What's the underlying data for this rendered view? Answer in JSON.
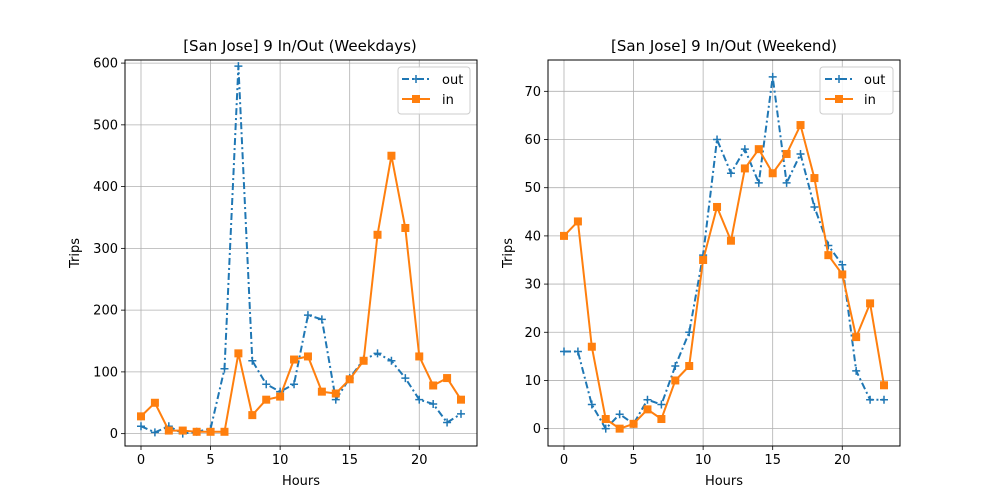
{
  "chart_data": [
    {
      "type": "line",
      "title": "[San Jose] 9 In/Out (Weekdays)",
      "xlabel": "Hours",
      "ylabel": "Trips",
      "xlim": [
        -1.15,
        24.15
      ],
      "ylim": [
        -20,
        605
      ],
      "xticks": [
        "0",
        "5",
        "10",
        "15",
        "20"
      ],
      "yticks": [
        "0",
        "100",
        "200",
        "300",
        "400",
        "500",
        "600"
      ],
      "grid": true,
      "legend_position": "top-right",
      "x": [
        0,
        1,
        2,
        3,
        4,
        5,
        6,
        7,
        8,
        9,
        10,
        11,
        12,
        13,
        14,
        15,
        16,
        17,
        18,
        19,
        20,
        21,
        22,
        23
      ],
      "series": [
        {
          "name": "out",
          "color": "#1f77b4",
          "style": "dash-dot",
          "marker": "plus",
          "values": [
            12,
            2,
            12,
            0,
            3,
            8,
            105,
            595,
            118,
            80,
            68,
            80,
            192,
            185,
            55,
            90,
            120,
            130,
            118,
            90,
            55,
            48,
            18,
            32
          ]
        },
        {
          "name": "in",
          "color": "#ff7f0e",
          "style": "solid",
          "marker": "square",
          "values": [
            28,
            50,
            5,
            5,
            3,
            3,
            3,
            130,
            30,
            55,
            60,
            120,
            125,
            68,
            65,
            88,
            118,
            322,
            450,
            333,
            125,
            78,
            90,
            55
          ]
        }
      ]
    },
    {
      "type": "line",
      "title": "[San Jose] 9 In/Out (Weekend)",
      "xlabel": "Hours",
      "ylabel": "Trips",
      "xlim": [
        -1.15,
        24.15
      ],
      "ylim": [
        -3.6,
        76.5
      ],
      "xticks": [
        "0",
        "5",
        "10",
        "15",
        "20"
      ],
      "yticks": [
        "0",
        "10",
        "20",
        "30",
        "40",
        "50",
        "60",
        "70"
      ],
      "grid": true,
      "legend_position": "top-right",
      "x": [
        0,
        1,
        2,
        3,
        4,
        5,
        6,
        7,
        8,
        9,
        10,
        11,
        12,
        13,
        14,
        15,
        16,
        17,
        18,
        19,
        20,
        21,
        22,
        23
      ],
      "series": [
        {
          "name": "out",
          "color": "#1f77b4",
          "style": "dash-dot",
          "marker": "plus",
          "values": [
            16,
            16,
            5,
            0,
            3,
            1,
            6,
            5,
            13,
            20,
            36,
            60,
            53,
            58,
            51,
            73,
            51,
            57,
            46,
            38,
            34,
            12,
            6,
            6
          ]
        },
        {
          "name": "in",
          "color": "#ff7f0e",
          "style": "solid",
          "marker": "square",
          "values": [
            40,
            43,
            17,
            2,
            0,
            1,
            4,
            2,
            10,
            13,
            35,
            46,
            39,
            54,
            58,
            53,
            57,
            63,
            52,
            36,
            32,
            19,
            26,
            9
          ]
        }
      ]
    }
  ]
}
